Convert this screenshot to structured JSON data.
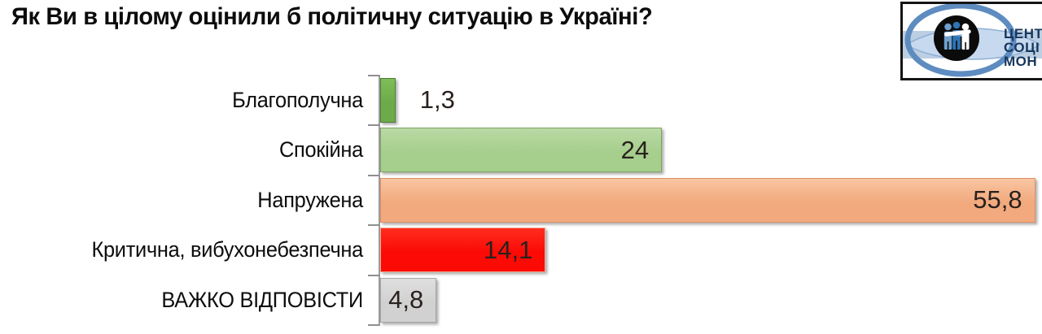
{
  "title": "Як Ви в цілому оцінили б політичну ситуацію в Україні?",
  "logo": {
    "org_lines": [
      "ЦЕНТ",
      "СОЦІ",
      "МОН"
    ],
    "ring_color": "#5e8cc0",
    "band_color": "#bccee2",
    "lens_color": "#c7d9ee",
    "lens_edge_color": "#8fb0d4",
    "circle_color": "#0b0b0b",
    "people_blue": "#2e74b5",
    "people_light_blue": "#6f9fcc",
    "people_white": "#ffffff",
    "text_color": "#17365d"
  },
  "chart_data": {
    "type": "bar",
    "orientation": "horizontal",
    "title": "Як Ви в цілому оцінили б політичну ситуацію в Україні?",
    "categories": [
      "Благополучна",
      "Спокійна",
      "Напружена",
      "Критична, вибухонебезпечна",
      "ВАЖКО ВІДПОВІСТИ"
    ],
    "values": [
      1.3,
      24,
      55.8,
      14.1,
      4.8
    ],
    "value_labels": [
      "1,3",
      "24",
      "55,8",
      "14,1",
      "4,8"
    ],
    "xlim": [
      0,
      57
    ],
    "grid": false,
    "legend": false,
    "bar_colors": [
      "#6dab4a",
      "#a6ce8c",
      "#f2a97d",
      "#fb0a06",
      "#d2d1d1"
    ],
    "bar_colors_light": [
      "#7fbd5b",
      "#badaa5",
      "#f8c6a2",
      "#ff2d1f",
      "#dfdfdf"
    ],
    "bar_border_colors": [
      "#4f7d33",
      "#7da463",
      "#dd9066",
      "#f2a78e",
      "#a5a5a5"
    ],
    "value_label_color": "#29211e",
    "axis_color": "#9b9b9b"
  }
}
